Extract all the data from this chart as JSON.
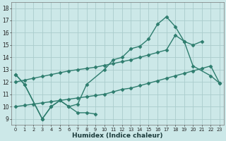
{
  "xlabel": "Humidex (Indice chaleur)",
  "x_ticks": [
    0,
    1,
    2,
    3,
    4,
    5,
    6,
    7,
    8,
    9,
    10,
    11,
    12,
    13,
    14,
    15,
    16,
    17,
    18,
    19,
    20,
    21,
    22,
    23
  ],
  "ylim": [
    8.5,
    18.5
  ],
  "yticks": [
    9,
    10,
    11,
    12,
    13,
    14,
    15,
    16,
    17,
    18
  ],
  "xlim": [
    -0.5,
    23.5
  ],
  "line_zigzag_x": [
    0,
    1,
    3,
    4,
    5,
    6,
    7,
    8,
    9
  ],
  "line_zigzag_y": [
    12.6,
    11.8,
    9.0,
    10.0,
    10.5,
    10.0,
    9.5,
    9.5,
    9.4
  ],
  "line_main_x": [
    0,
    1,
    3,
    4,
    5,
    6,
    7,
    8,
    10,
    11,
    12,
    13,
    14,
    15,
    16,
    17,
    18,
    19,
    20,
    22,
    23
  ],
  "line_main_y": [
    12.6,
    11.8,
    9.0,
    10.0,
    10.5,
    10.0,
    10.2,
    11.8,
    13.0,
    13.8,
    14.0,
    14.7,
    14.9,
    15.5,
    16.7,
    17.3,
    16.5,
    15.3,
    13.3,
    12.5,
    11.9
  ],
  "line_low_x": [
    0,
    1,
    2,
    3,
    4,
    5,
    6,
    7,
    8,
    9,
    10,
    11,
    12,
    13,
    14,
    15,
    16,
    17,
    18,
    19,
    20,
    21,
    22,
    23
  ],
  "line_low_y": [
    10.0,
    10.1,
    10.2,
    10.3,
    10.4,
    10.5,
    10.6,
    10.7,
    10.8,
    10.9,
    11.0,
    11.2,
    11.4,
    11.5,
    11.7,
    11.9,
    12.1,
    12.3,
    12.5,
    12.7,
    12.9,
    13.1,
    13.3,
    11.9
  ],
  "line_high_x": [
    0,
    1,
    2,
    3,
    4,
    5,
    6,
    7,
    8,
    9,
    10,
    11,
    12,
    13,
    14,
    15,
    16,
    17,
    18,
    19,
    20,
    21
  ],
  "line_high_y": [
    12.0,
    12.15,
    12.3,
    12.45,
    12.6,
    12.75,
    12.9,
    13.0,
    13.1,
    13.2,
    13.35,
    13.5,
    13.65,
    13.8,
    14.0,
    14.2,
    14.4,
    14.6,
    15.8,
    15.3,
    15.0,
    15.3
  ],
  "line_color": "#2e7d6e",
  "bg_color": "#cce8e8",
  "grid_color": "#aacccc",
  "marker": "D",
  "marker_size": 2.5,
  "linewidth": 1.0
}
